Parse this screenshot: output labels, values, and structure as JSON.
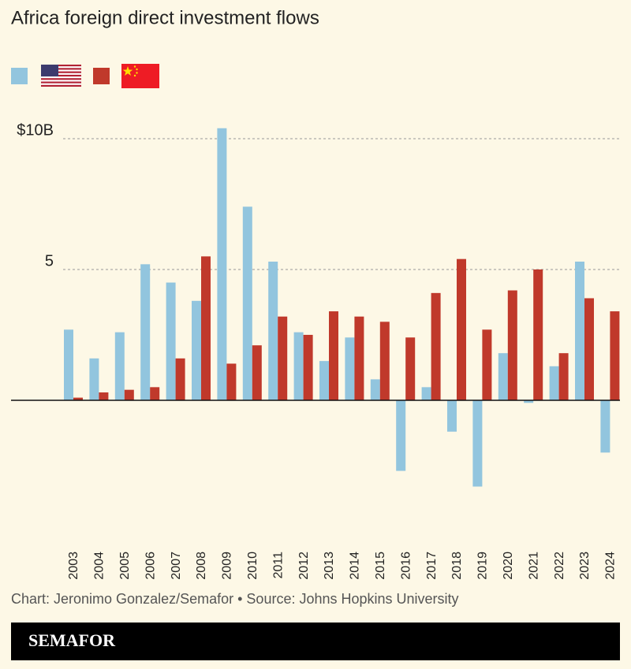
{
  "chart_data": {
    "type": "bar",
    "title": "Africa foreign direct investment flows",
    "categories": [
      "2003",
      "2004",
      "2005",
      "2006",
      "2007",
      "2008",
      "2009",
      "2010",
      "2011",
      "2012",
      "2013",
      "2014",
      "2015",
      "2016",
      "2017",
      "2018",
      "2019",
      "2020",
      "2021",
      "2022",
      "2023",
      "2024"
    ],
    "series": [
      {
        "color": "#92c5de",
        "values": [
          2.7,
          1.6,
          2.6,
          5.2,
          4.5,
          3.8,
          10.4,
          7.4,
          5.3,
          2.6,
          1.5,
          2.4,
          0.8,
          -2.7,
          0.5,
          -1.2,
          -3.3,
          1.8,
          -0.1,
          1.3,
          5.3,
          -2.0
        ]
      },
      {
        "color": "#c0392b",
        "values": [
          0.1,
          0.3,
          0.4,
          0.5,
          1.6,
          5.5,
          1.4,
          2.1,
          3.2,
          2.5,
          3.4,
          3.2,
          3.0,
          2.4,
          4.1,
          5.4,
          2.7,
          4.2,
          5.0,
          1.8,
          3.9,
          3.4
        ]
      }
    ],
    "ylim": [
      -4.4,
      11
    ],
    "yticks": [
      {
        "value": 10,
        "label": "$10B"
      },
      5
    ],
    "grid": true
  },
  "footer": "Chart: Jeronimo Gonzalez/Semafor • Source: Johns Hopkins University",
  "brand": "SEMAFOR"
}
